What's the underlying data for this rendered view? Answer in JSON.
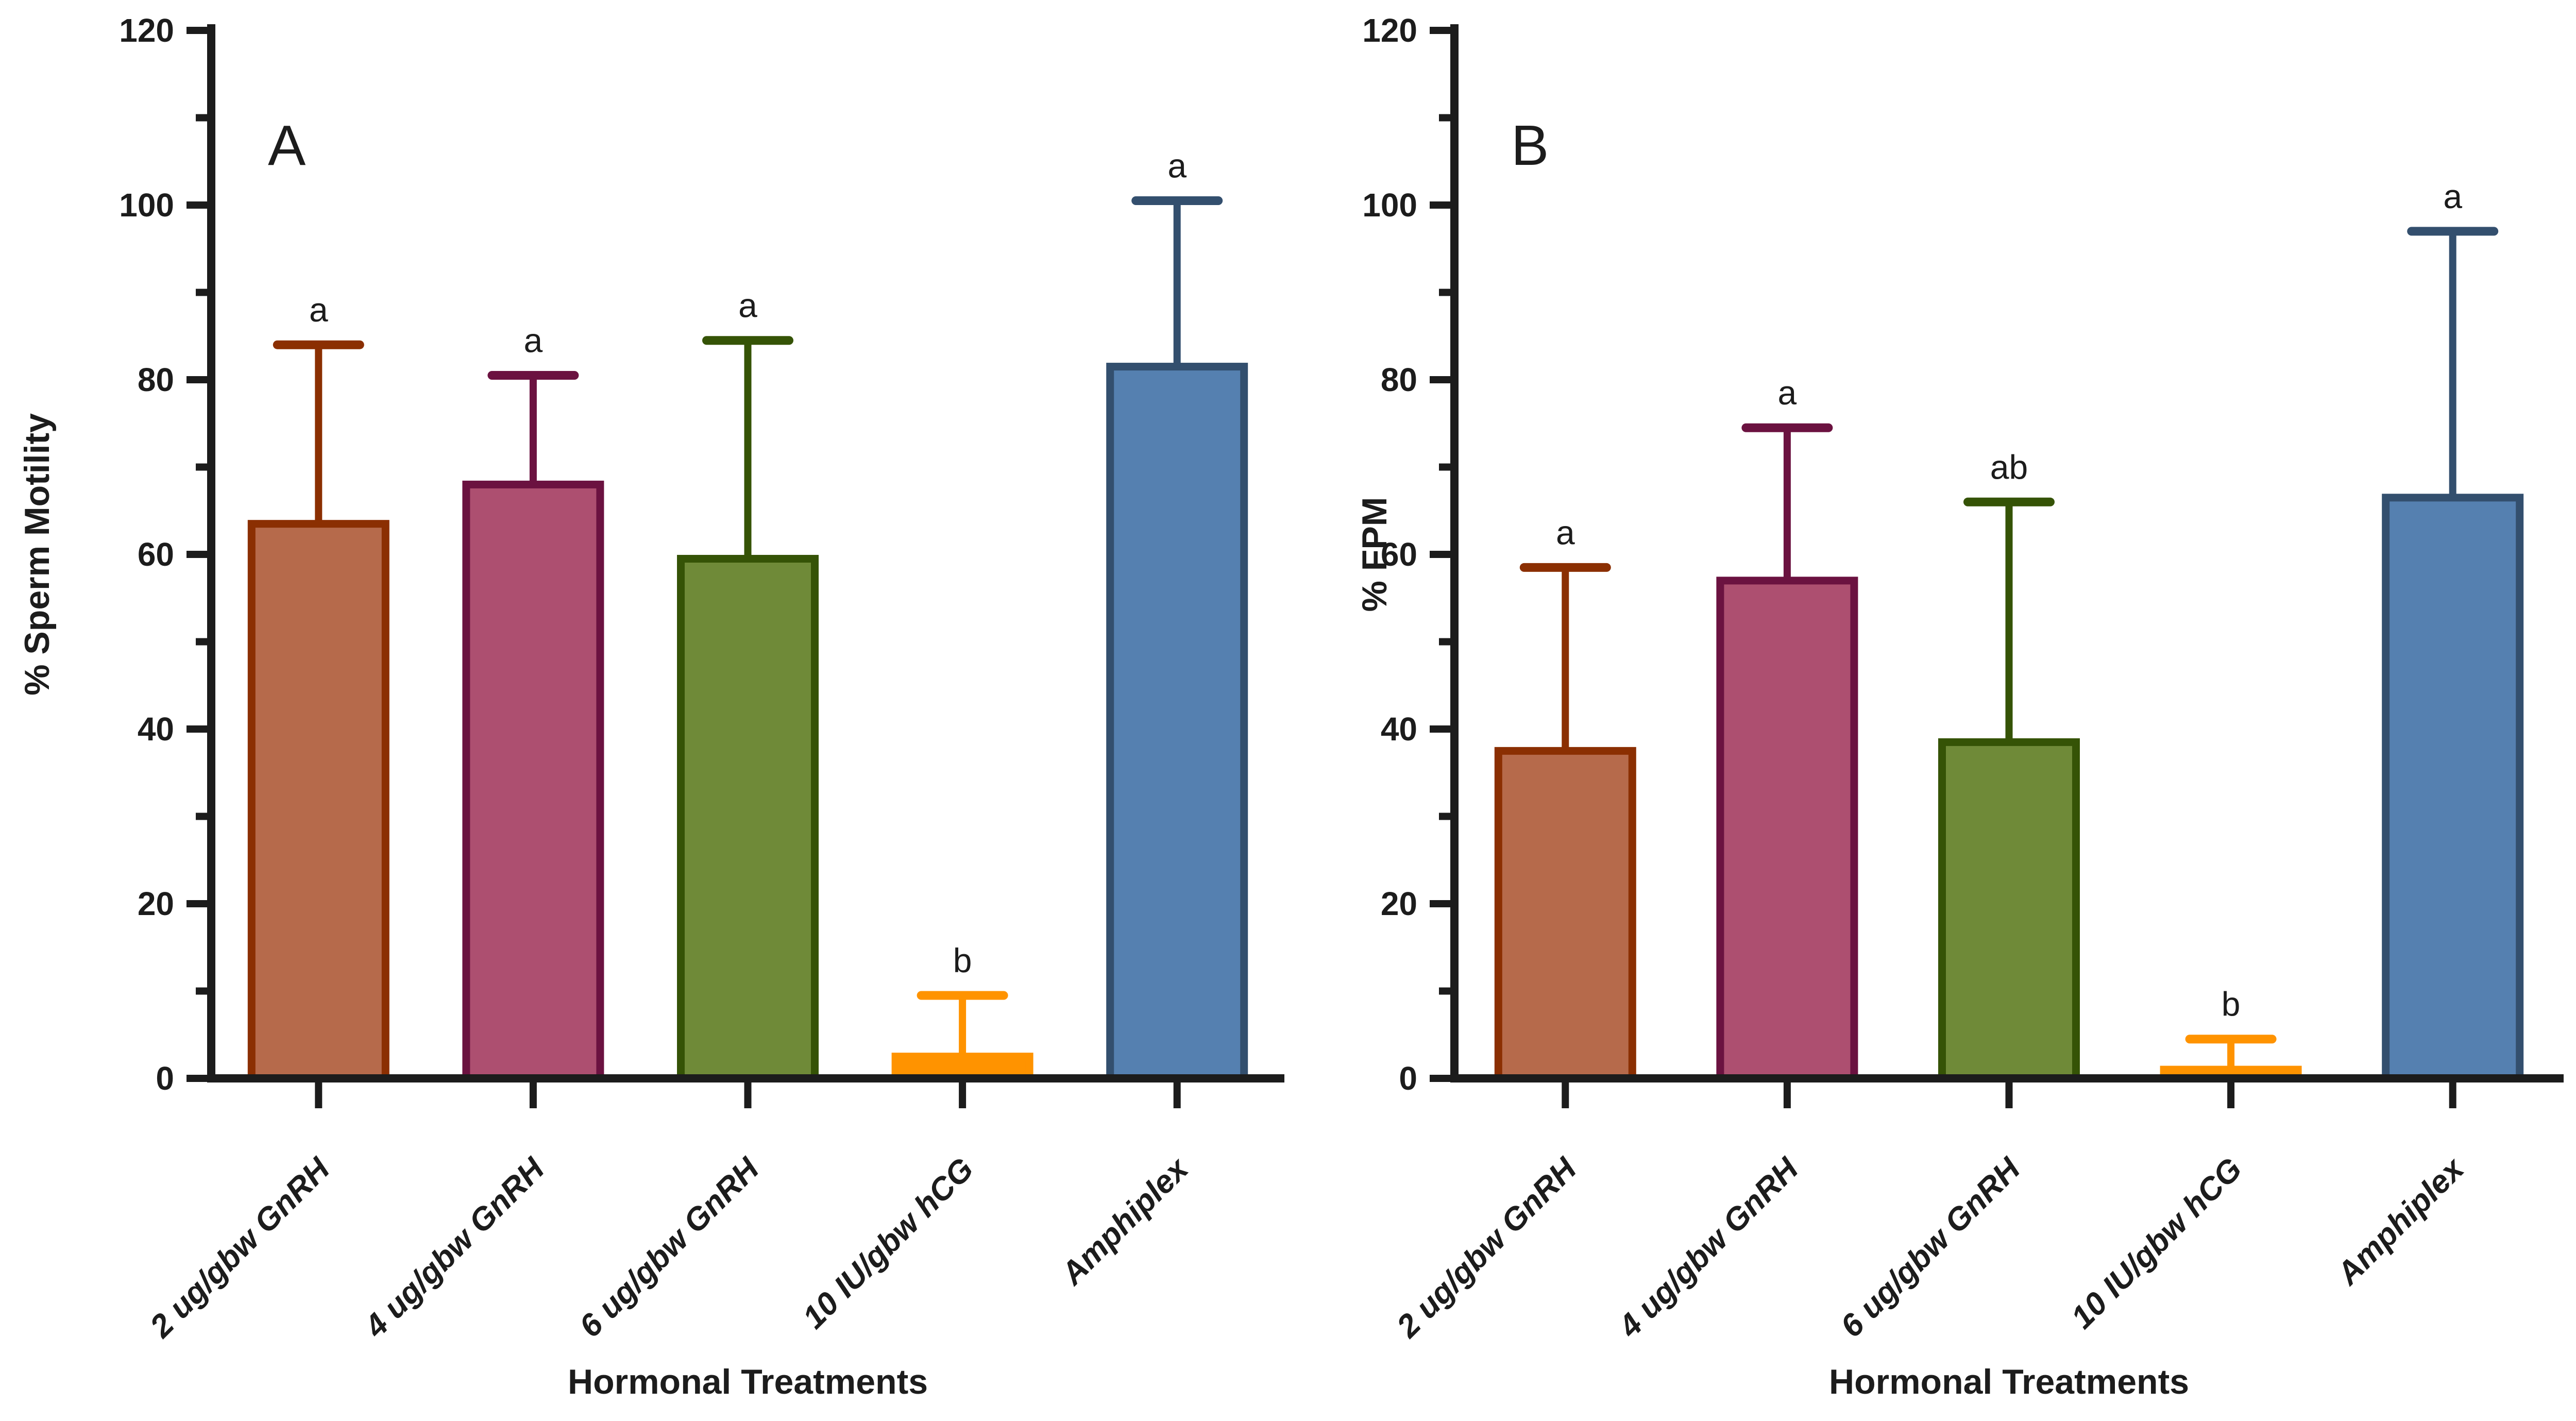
{
  "figure": {
    "xlabel": "Hormonal Treatments",
    "panel_letters": [
      "A",
      "B"
    ]
  },
  "colors": {
    "axis": "#1C1C1C",
    "text": "#1C1C1C",
    "background": "#FFFFFF",
    "bar_fills": [
      "#B66A4B",
      "#AD4F70",
      "#6F8A38",
      "#FF9300",
      "#5580B0"
    ],
    "bar_strokes": [
      "#8B2F02",
      "#6B1240",
      "#355306",
      "#FF9300",
      "#334F6E"
    ]
  },
  "chart_data": [
    {
      "type": "bar",
      "panel_letter": "A",
      "title": "A",
      "categories": [
        "2 ug/gbw GnRH",
        "4 ug/gbw GnRH",
        "6 ug/gbw GnRH",
        "10 IU/gbw hCG",
        "Amphiplex"
      ],
      "values": [
        63.5,
        68,
        59.5,
        2.5,
        81.5
      ],
      "error_bar_tops": [
        84,
        80.5,
        84.5,
        9.5,
        100.5
      ],
      "significance_letters": [
        "a",
        "a",
        "a",
        "b",
        "a"
      ],
      "xlabel": "Hormonal Treatments",
      "ylabel": "% Sperm Motility",
      "ylim": [
        0,
        120
      ],
      "ytick_step": 20,
      "minor_tick_step": 10,
      "ytick_labels": [
        "0",
        "20",
        "40",
        "60",
        "80",
        "100",
        "120"
      ],
      "grid": "off",
      "legend": "none",
      "bar_fills": [
        "#B66A4B",
        "#AD4F70",
        "#6F8A38",
        "#FF9300",
        "#5580B0"
      ],
      "bar_strokes": [
        "#8B2F02",
        "#6B1240",
        "#355306",
        "#FF9300",
        "#334F6E"
      ]
    },
    {
      "type": "bar",
      "panel_letter": "B",
      "title": "B",
      "categories": [
        "2 ug/gbw GnRH",
        "4 ug/gbw GnRH",
        "6 ug/gbw GnRH",
        "10 IU/gbw hCG",
        "Amphiplex"
      ],
      "values": [
        37.5,
        57,
        38.5,
        1,
        66.5
      ],
      "error_bar_tops": [
        58.5,
        74.5,
        66,
        4.5,
        97
      ],
      "significance_letters": [
        "a",
        "a",
        "ab",
        "b",
        "a"
      ],
      "xlabel": "Hormonal Treatments",
      "ylabel": "% FPM",
      "ylim": [
        0,
        120
      ],
      "ytick_step": 20,
      "minor_tick_step": 10,
      "ytick_labels": [
        "0",
        "20",
        "40",
        "60",
        "80",
        "100",
        "120"
      ],
      "grid": "off",
      "legend": "none",
      "bar_fills": [
        "#B66A4B",
        "#AD4F70",
        "#6F8A38",
        "#FF9300",
        "#5580B0"
      ],
      "bar_strokes": [
        "#8B2F02",
        "#6B1240",
        "#355306",
        "#FF9300",
        "#334F6E"
      ]
    }
  ]
}
